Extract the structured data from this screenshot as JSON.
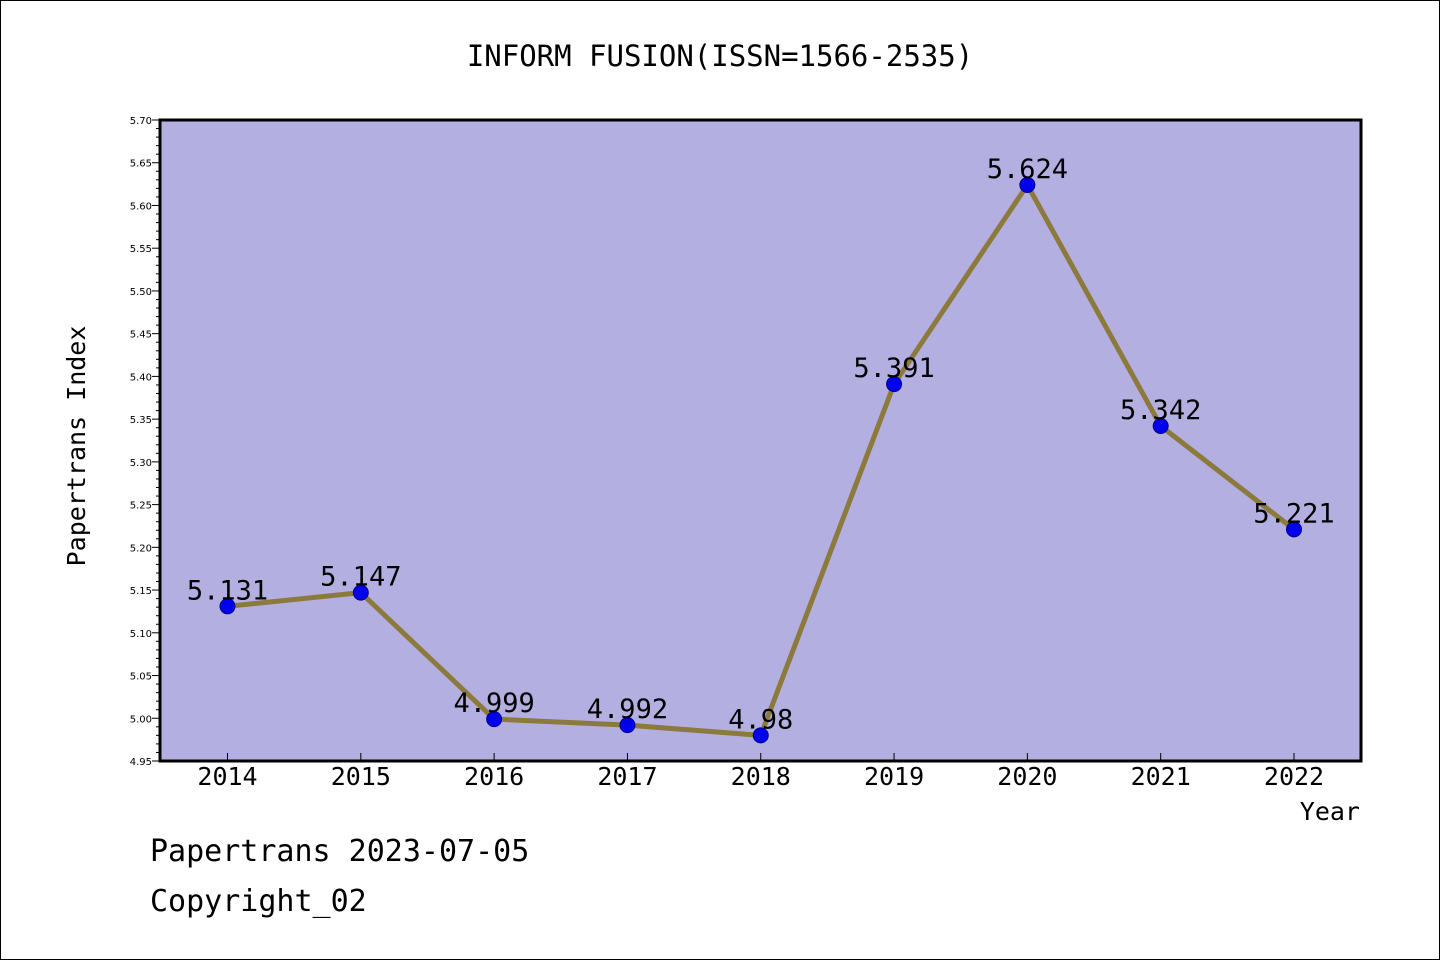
{
  "chart_data": {
    "type": "line",
    "title": "INFORM FUSION(ISSN=1566-2535)",
    "xlabel": "Year",
    "ylabel": "Papertrans Index",
    "categories": [
      "2014",
      "2015",
      "2016",
      "2017",
      "2018",
      "2019",
      "2020",
      "2021",
      "2022"
    ],
    "values": [
      5.131,
      5.147,
      4.999,
      4.992,
      4.98,
      5.391,
      5.624,
      5.342,
      5.221
    ],
    "value_labels": [
      "5.131",
      "5.147",
      "4.999",
      "4.992",
      "4.98",
      "5.391",
      "5.624",
      "5.342",
      "5.221"
    ],
    "ylim": [
      4.95,
      5.7
    ],
    "yticks": [
      "4.95",
      "5.00",
      "5.05",
      "5.10",
      "5.15",
      "5.20",
      "5.25",
      "5.30",
      "5.35",
      "5.40",
      "5.45",
      "5.50",
      "5.55",
      "5.60",
      "5.65",
      "5.70"
    ],
    "grid": false,
    "colors": {
      "plot_background": "#b4afe1",
      "line": "#8b7a3c",
      "marker": "#0000ee"
    }
  },
  "footer": {
    "line1": "Papertrans 2023-07-05",
    "line2": "Copyright_02"
  }
}
